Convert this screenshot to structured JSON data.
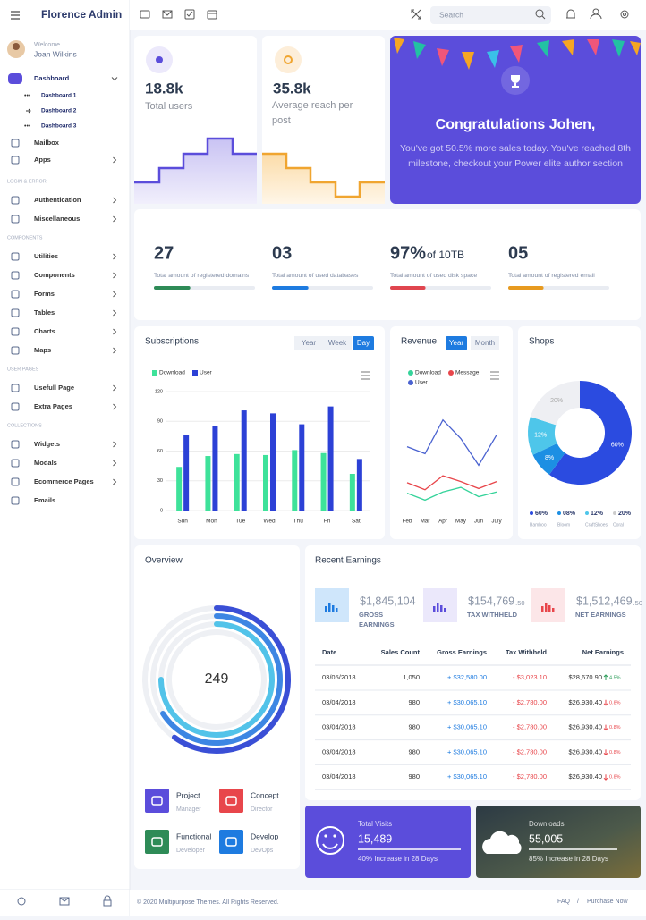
{
  "brand": "Florence Admin",
  "topbar": {
    "search": "Search"
  },
  "user": {
    "welcome": "Welcome",
    "name": "Joan Wilkins"
  },
  "nav_top": [
    {
      "label": "Dashboard",
      "submenu": true,
      "children": [
        "Dashboard 1",
        "Dashboard 2",
        "Dashboard 3"
      ]
    },
    {
      "label": "Mailbox",
      "submenu": false
    },
    {
      "label": "Apps",
      "submenu": true
    }
  ],
  "nav_sections": [
    {
      "title": "LOGIN & ERROR",
      "items": [
        {
          "label": "Authentication",
          "submenu": true
        },
        {
          "label": "Miscellaneous",
          "submenu": true
        }
      ]
    },
    {
      "title": "COMPONENTS",
      "items": [
        {
          "label": "Utilities",
          "submenu": true
        },
        {
          "label": "Components",
          "submenu": true
        },
        {
          "label": "Forms",
          "submenu": true
        },
        {
          "label": "Tables",
          "submenu": true
        },
        {
          "label": "Charts",
          "submenu": true
        },
        {
          "label": "Maps",
          "submenu": true
        }
      ]
    },
    {
      "title": "USER PAGES",
      "items": [
        {
          "label": "Usefull Page",
          "submenu": true
        },
        {
          "label": "Extra Pages",
          "submenu": true
        }
      ]
    },
    {
      "title": "COLLECTIONS",
      "items": [
        {
          "label": "Widgets",
          "submenu": true
        },
        {
          "label": "Modals",
          "submenu": true
        },
        {
          "label": "Ecommerce Pages",
          "submenu": true
        },
        {
          "label": "Emails",
          "submenu": false
        }
      ]
    }
  ],
  "cards": [
    {
      "value": "18.8k",
      "label": "Total users"
    },
    {
      "value": "35.8k",
      "label": "Average reach per post"
    }
  ],
  "congrats": {
    "title": "Congratulations Johen,",
    "message": "You've got 50.5% more sales today. You've reached 8th milestone, checkout your Power elite author section"
  },
  "stats": [
    {
      "value": "27",
      "label": "Total amount of registered domains",
      "progress": 36,
      "color": "#2e8b57"
    },
    {
      "value": "03",
      "label": "Total amount of used databases",
      "progress": 36,
      "color": "#1e7be0"
    },
    {
      "value": "97%",
      "suffix": "of 10TB",
      "label": "Total amount of used disk space",
      "progress": 35,
      "color": "#e0454f"
    },
    {
      "value": "05",
      "label": "Total amount of registered email",
      "progress": 35,
      "color": "#e79a1f"
    }
  ],
  "chart_data": [
    {
      "type": "bar",
      "title": "Subscriptions",
      "tabs": [
        "Year",
        "Week",
        "Day"
      ],
      "active_tab": 2,
      "categories": [
        "Sun",
        "Mon",
        "Tue",
        "Wed",
        "Thu",
        "Fri",
        "Sat"
      ],
      "series": [
        {
          "name": "Download",
          "color": "#3ee29a",
          "values": [
            44,
            55,
            57,
            56,
            61,
            58,
            37
          ]
        },
        {
          "name": "User",
          "color": "#2c41d6",
          "values": [
            76,
            85,
            101,
            98,
            87,
            105,
            52
          ]
        }
      ],
      "ylim": [
        0,
        120
      ],
      "yticks": [
        0,
        30,
        60,
        90,
        120
      ],
      "grid": true
    },
    {
      "type": "line",
      "title": "Revenue",
      "tabs": [
        "Year",
        "Month"
      ],
      "active_tab": 0,
      "categories": [
        "Feb",
        "Mar",
        "Apr",
        "May",
        "Jun",
        "July"
      ],
      "series": [
        {
          "name": "Download",
          "color": "#35d39a",
          "values": [
            18,
            12,
            19,
            23,
            15,
            19
          ]
        },
        {
          "name": "Message",
          "color": "#e8464b",
          "values": [
            27,
            21,
            33,
            28,
            22,
            28
          ]
        },
        {
          "name": "User",
          "color": "#4a62d0",
          "values": [
            58,
            52,
            81,
            65,
            42,
            68
          ]
        }
      ],
      "ylim": [
        0,
        100
      ]
    },
    {
      "type": "pie",
      "title": "Shops",
      "categories": [
        "Bamboo",
        "Bloom",
        "CraftShoes",
        "Coral"
      ],
      "values": [
        60,
        8,
        12,
        20
      ],
      "value_labels": [
        "60%",
        "8%",
        "12%",
        "20%"
      ],
      "legend_labels": [
        "60%",
        "08%",
        "12%",
        "20%"
      ],
      "colors": [
        "#2b4be0",
        "#1c8fe3",
        "#4ec6ea",
        "#eeeff3"
      ]
    },
    {
      "type": "radial",
      "title": "Overview",
      "center_label": 249,
      "values": [
        60,
        66,
        75
      ],
      "max": 100,
      "colors": [
        "#3a4fd6",
        "#3d86e3",
        "#52c3e9"
      ]
    }
  ],
  "team": [
    {
      "role": "Project",
      "sub": "Manager",
      "color": "#5b4ddb"
    },
    {
      "role": "Concept",
      "sub": "Director",
      "color": "#e8464b"
    },
    {
      "role": "Functional",
      "sub": "Developer",
      "color": "#2e8b57"
    },
    {
      "role": "Develop",
      "sub": "DevOps",
      "color": "#1e7be0"
    }
  ],
  "earnings": {
    "title": "Recent Earnings",
    "summary": [
      {
        "amount": "$1,845,104",
        "label": "GROSS EARNINGS",
        "color": "#cfe6fb"
      },
      {
        "amount": "$154,769",
        "cents": ".50",
        "label": "TAX WITHHELD",
        "color": "#ebe8fb"
      },
      {
        "amount": "$1,512,469",
        "cents": ".50",
        "label": "NET EARNINGS",
        "color": "#fce6e8"
      }
    ],
    "columns": [
      "Date",
      "Sales Count",
      "Gross Earnings",
      "Tax Withheld",
      "Net Earnings"
    ],
    "rows": [
      [
        "03/05/2018",
        "1,050",
        "+ $32,580.00",
        "- $3,023.10",
        "$28,670.90",
        "4.5%"
      ],
      [
        "03/04/2018",
        "980",
        "+ $30,065.10",
        "- $2,780.00",
        "$26,930.40",
        "0.8%"
      ],
      [
        "03/04/2018",
        "980",
        "+ $30,065.10",
        "- $2,780.00",
        "$26,930.40",
        "0.8%"
      ],
      [
        "03/04/2018",
        "980",
        "+ $30,065.10",
        "- $2,780.00",
        "$26,930.40",
        "0.8%"
      ],
      [
        "03/04/2018",
        "980",
        "+ $30,065.10",
        "- $2,780.00",
        "$26,930.40",
        "0.8%"
      ]
    ],
    "trend": [
      "up",
      "down",
      "down",
      "down",
      "down"
    ]
  },
  "visits": [
    {
      "title": "Total Visits",
      "value": "15,489",
      "note": "40% Increase in 28 Days"
    },
    {
      "title": "Downloads",
      "value": "55,005",
      "note": "85% Increase in 28 Days"
    }
  ],
  "footer": {
    "copyright": "© 2020 Multipurpose Themes. All Rights Reserved.",
    "links": [
      "FAQ",
      "Purchase Now"
    ],
    "separator": "/"
  }
}
